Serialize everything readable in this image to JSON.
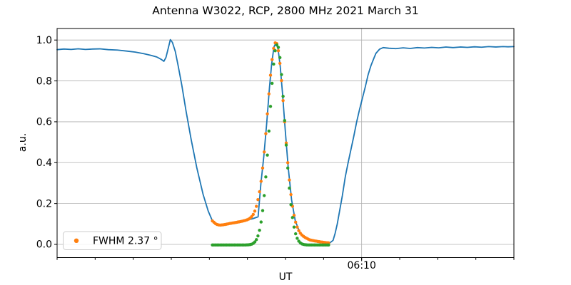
{
  "figure": {
    "background": "#ffffff"
  },
  "chart_data": {
    "type": "line+scatter",
    "title": "Antenna W3022, RCP, 2800 MHz 2021 March 31",
    "xlabel": "UT",
    "ylabel": "a.u.",
    "grid": true,
    "legend_position": "lower left",
    "colors": {
      "line": "#1f77b4",
      "scan_dots": "#ff7f0e",
      "fit_dots": "#2ca02c",
      "grid": "#b0b0b0",
      "axis": "#000000",
      "legend_border": "#cccccc"
    },
    "x_axis": {
      "unit": "minutes relative to 06:10 UT (estimated from tick spacing)",
      "lim": [
        -16,
        8
      ],
      "minor_tick_step": 2,
      "major_ticks": [
        {
          "t": 0,
          "label": "06:10"
        }
      ]
    },
    "y_axis": {
      "lim": [
        -0.0645,
        1.0565
      ],
      "ticks": [
        {
          "v": 1.0,
          "label": "1.0"
        },
        {
          "v": 0.8,
          "label": "0.8"
        },
        {
          "v": 0.6,
          "label": "0.6"
        },
        {
          "v": 0.4,
          "label": "0.4"
        },
        {
          "v": 0.2,
          "label": "0.2"
        },
        {
          "v": 0.0,
          "label": "0.0"
        }
      ]
    },
    "legend": {
      "label": "FWHM 2.37 °",
      "marker_color": "#ff7f0e"
    },
    "series": [
      {
        "name": "total-power-scan",
        "type": "line",
        "color": "#1f77b4",
        "stroke_width": 1.8,
        "points": [
          [
            -16.0,
            0.953
          ],
          [
            -15.64,
            0.956
          ],
          [
            -15.26,
            0.954
          ],
          [
            -14.89,
            0.957
          ],
          [
            -14.51,
            0.954
          ],
          [
            -14.14,
            0.956
          ],
          [
            -13.76,
            0.957
          ],
          [
            -13.31,
            0.953
          ],
          [
            -12.83,
            0.951
          ],
          [
            -12.34,
            0.946
          ],
          [
            -11.89,
            0.941
          ],
          [
            -11.44,
            0.933
          ],
          [
            -11.06,
            0.925
          ],
          [
            -10.76,
            0.917
          ],
          [
            -10.54,
            0.906
          ],
          [
            -10.39,
            0.896
          ],
          [
            -10.28,
            0.915
          ],
          [
            -10.16,
            0.96
          ],
          [
            -10.05,
            1.002
          ],
          [
            -9.94,
            0.988
          ],
          [
            -9.79,
            0.944
          ],
          [
            -9.64,
            0.874
          ],
          [
            -9.45,
            0.78
          ],
          [
            -9.23,
            0.655
          ],
          [
            -8.96,
            0.515
          ],
          [
            -8.66,
            0.375
          ],
          [
            -8.33,
            0.245
          ],
          [
            -8.06,
            0.163
          ],
          [
            -7.84,
            0.115
          ],
          [
            -7.61,
            0.097
          ],
          [
            -7.39,
            0.096
          ],
          [
            -7.01,
            0.103
          ],
          [
            -6.56,
            0.11
          ],
          [
            -6.11,
            0.118
          ],
          [
            -5.74,
            0.125
          ],
          [
            -5.44,
            0.135
          ],
          [
            -5.29,
            0.3
          ],
          [
            -5.14,
            0.43
          ],
          [
            -4.99,
            0.59
          ],
          [
            -4.84,
            0.77
          ],
          [
            -4.73,
            0.88
          ],
          [
            -4.61,
            0.965
          ],
          [
            -4.5,
            0.988
          ],
          [
            -4.39,
            0.956
          ],
          [
            -4.28,
            0.874
          ],
          [
            -4.16,
            0.743
          ],
          [
            -4.01,
            0.555
          ],
          [
            -3.86,
            0.379
          ],
          [
            -3.68,
            0.218
          ],
          [
            -3.49,
            0.117
          ],
          [
            -3.26,
            0.06
          ],
          [
            -3.0,
            0.036
          ],
          [
            -2.7,
            0.021
          ],
          [
            -2.4,
            0.016
          ],
          [
            -2.14,
            0.011
          ],
          [
            -1.91,
            0.008
          ],
          [
            -1.69,
            0.006
          ],
          [
            -1.5,
            0.02
          ],
          [
            -1.39,
            0.055
          ],
          [
            -1.28,
            0.1
          ],
          [
            -1.01,
            0.24
          ],
          [
            -0.86,
            0.33
          ],
          [
            -0.71,
            0.4
          ],
          [
            -0.41,
            0.53
          ],
          [
            -0.26,
            0.6
          ],
          [
            -0.11,
            0.66
          ],
          [
            0.19,
            0.77
          ],
          [
            0.34,
            0.83
          ],
          [
            0.49,
            0.875
          ],
          [
            0.64,
            0.91
          ],
          [
            0.75,
            0.935
          ],
          [
            0.94,
            0.955
          ],
          [
            1.13,
            0.963
          ],
          [
            1.43,
            0.96
          ],
          [
            1.8,
            0.958
          ],
          [
            2.18,
            0.962
          ],
          [
            2.55,
            0.959
          ],
          [
            2.93,
            0.963
          ],
          [
            3.3,
            0.961
          ],
          [
            3.68,
            0.964
          ],
          [
            4.05,
            0.962
          ],
          [
            4.43,
            0.966
          ],
          [
            4.8,
            0.963
          ],
          [
            5.18,
            0.966
          ],
          [
            5.55,
            0.964
          ],
          [
            5.93,
            0.967
          ],
          [
            6.3,
            0.965
          ],
          [
            6.68,
            0.968
          ],
          [
            7.05,
            0.966
          ],
          [
            7.43,
            0.968
          ],
          [
            7.69,
            0.967
          ],
          [
            8.0,
            0.968
          ]
        ]
      },
      {
        "name": "drift-scan-data",
        "type": "dots",
        "color": "#ff7f0e",
        "dot_radius": 2.2,
        "t_start": -7.84,
        "t_end": -1.69,
        "t_step": 0.0825,
        "gaussian": {
          "center": -4.5,
          "sigma": 0.44,
          "amplitude": 0.895
        },
        "baseline_points": [
          [
            -7.84,
            0.115
          ],
          [
            -7.65,
            0.099
          ],
          [
            -7.46,
            0.094
          ],
          [
            -7.2,
            0.097
          ],
          [
            -6.83,
            0.104
          ],
          [
            -6.45,
            0.11
          ],
          [
            -6.08,
            0.117
          ],
          [
            -5.7,
            0.124
          ],
          [
            -5.44,
            0.131
          ],
          [
            -2.7,
            0.021
          ],
          [
            -2.4,
            0.016
          ],
          [
            -2.14,
            0.012
          ],
          [
            -1.91,
            0.009
          ],
          [
            -1.69,
            0.007
          ]
        ]
      },
      {
        "name": "gaussian-fit",
        "type": "dots",
        "color": "#2ca02c",
        "dot_radius": 2.2,
        "t_start": -7.84,
        "t_end": -1.69,
        "t_step": 0.0825,
        "gaussian": {
          "center": -4.44,
          "sigma": 0.405,
          "amplitude": 0.98
        },
        "baseline_points": [
          [
            -7.84,
            -0.003
          ],
          [
            -1.69,
            -0.003
          ]
        ]
      }
    ]
  }
}
